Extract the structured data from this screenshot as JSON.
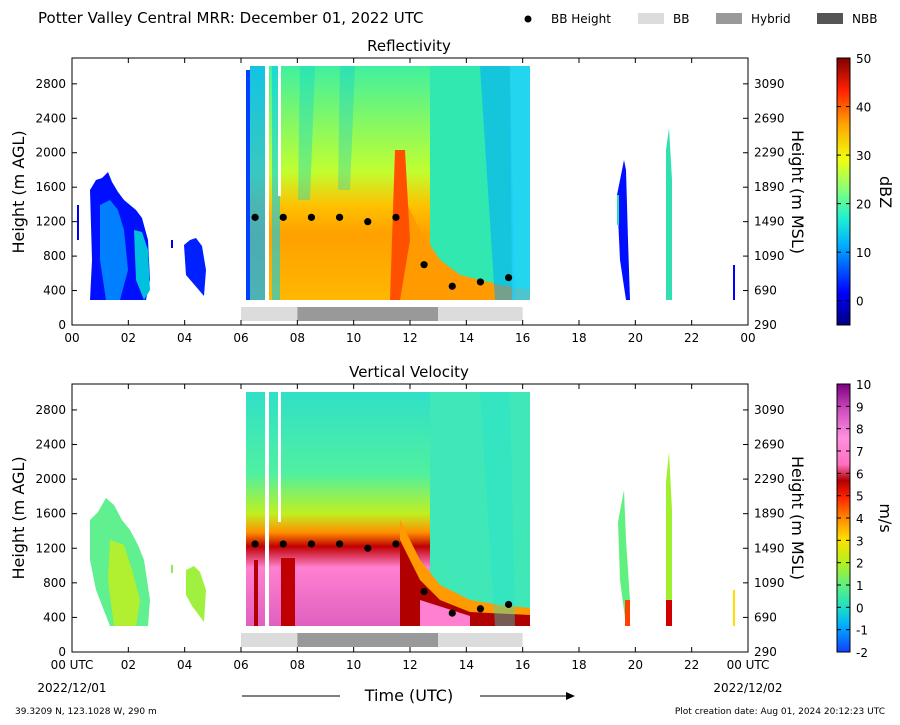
{
  "header": {
    "title": "Potter Valley Central MRR:  December 01, 2022 UTC"
  },
  "legend": {
    "items": [
      {
        "label": "BB Height",
        "kind": "dot",
        "color": "#000000"
      },
      {
        "label": "BB",
        "kind": "patch",
        "color": "#dcdcdc"
      },
      {
        "label": "Hybrid",
        "kind": "patch",
        "color": "#999999"
      },
      {
        "label": "NBB",
        "kind": "patch",
        "color": "#555555"
      }
    ]
  },
  "axes": {
    "x_ticks": [
      "00 UTC",
      "02",
      "04",
      "06",
      "08",
      "10",
      "12",
      "14",
      "16",
      "18",
      "20",
      "22",
      "00 UTC"
    ],
    "x_ticks_top": [
      "00",
      "02",
      "04",
      "06",
      "08",
      "10",
      "12",
      "14",
      "16",
      "18",
      "20",
      "22",
      "00"
    ],
    "date_start": "2022/12/01",
    "date_end": "2022/12/02",
    "xlabel": "Time (UTC)",
    "ylabel_left": "Height (m AGL)",
    "ylabel_right": "Height (m MSL)",
    "y_ticks_left": [
      "0",
      "400",
      "800",
      "1200",
      "1600",
      "2000",
      "2400",
      "2800"
    ],
    "y_ticks_right": [
      "290",
      "690",
      "1090",
      "1490",
      "1890",
      "2290",
      "2690",
      "3090"
    ]
  },
  "footer": {
    "location": "39.3209 N, 123.1028 W, 290 m",
    "created": "Plot creation date: Aug 01, 2024 20:12:23 UTC"
  },
  "chart_data": [
    {
      "type": "heatmap",
      "title": "Reflectivity",
      "xlabel": "",
      "ylabel": "Height (m AGL)",
      "ylabel_right": "Height (m MSL)",
      "xlim": [
        0,
        24
      ],
      "ylim": [
        0,
        3100
      ],
      "colorbar": {
        "label": "dBZ",
        "range": [
          -5,
          50
        ],
        "ticks": [
          "0",
          "10",
          "20",
          "30",
          "40",
          "50"
        ],
        "tick_values": [
          0,
          10,
          20,
          30,
          40,
          50
        ]
      },
      "bright_band_height": {
        "time_utc": [
          6.5,
          7.5,
          8.5,
          9.5,
          10.5,
          11.5,
          12.5,
          13.5,
          14.5,
          15.5
        ],
        "height_m": [
          1250,
          1250,
          1250,
          1250,
          1200,
          1250,
          700,
          450,
          500,
          550
        ]
      },
      "bb_type_segments": [
        {
          "start": 6.0,
          "end": 8.0,
          "type": "BB"
        },
        {
          "start": 8.0,
          "end": 13.0,
          "type": "Hybrid"
        },
        {
          "start": 13.0,
          "end": 16.0,
          "type": "BB"
        }
      ]
    },
    {
      "type": "heatmap",
      "title": "Vertical Velocity",
      "xlabel": "Time (UTC)",
      "ylabel": "Height (m AGL)",
      "ylabel_right": "Height (m MSL)",
      "xlim": [
        0,
        24
      ],
      "ylim": [
        0,
        3100
      ],
      "colorbar": {
        "label": "m/s",
        "range": [
          -2,
          10
        ],
        "ticks": [
          "-2",
          "-1",
          "0",
          "1",
          "2",
          "3",
          "4",
          "5",
          "6",
          "7",
          "8",
          "9",
          "10"
        ],
        "tick_values": [
          -2,
          -1,
          0,
          1,
          2,
          3,
          4,
          5,
          6,
          7,
          8,
          9,
          10
        ]
      },
      "bright_band_height": {
        "time_utc": [
          6.5,
          7.5,
          8.5,
          9.5,
          10.5,
          11.5,
          12.5,
          13.5,
          14.5,
          15.5
        ],
        "height_m": [
          1250,
          1250,
          1250,
          1250,
          1200,
          1250,
          700,
          450,
          500,
          550
        ]
      },
      "bb_type_segments": [
        {
          "start": 6.0,
          "end": 8.0,
          "type": "BB"
        },
        {
          "start": 8.0,
          "end": 13.0,
          "type": "Hybrid"
        },
        {
          "start": 13.0,
          "end": 16.0,
          "type": "BB"
        }
      ]
    }
  ]
}
